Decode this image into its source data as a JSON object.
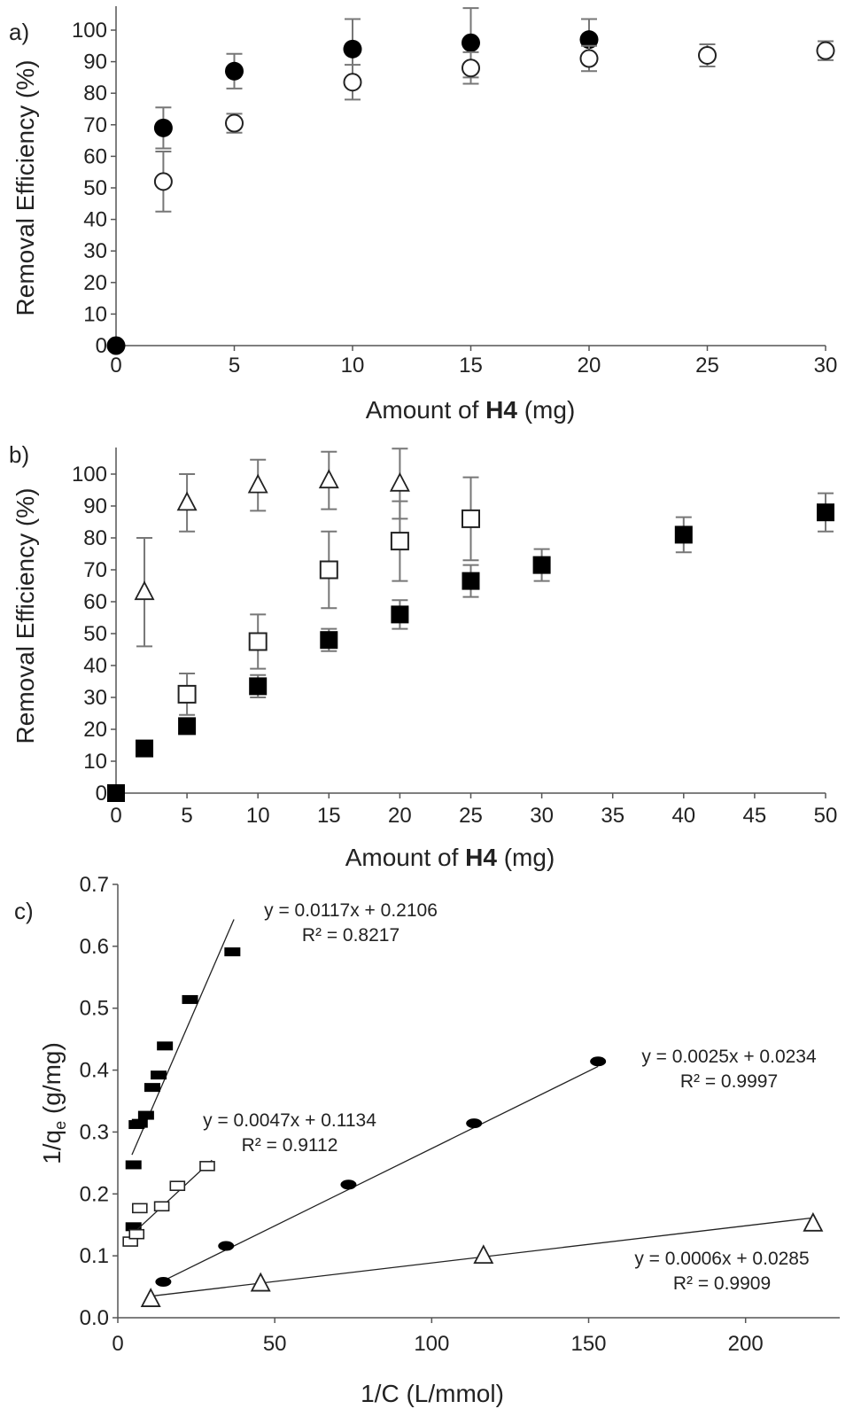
{
  "chart_data": [
    {
      "panel_label": "a)",
      "type": "scatter",
      "xlabel_prefix": "Amount of ",
      "xlabel_bold": "H4",
      "xlabel_suffix": " (mg)",
      "ylabel": "Removal Efficiency (%)",
      "xlim": [
        0,
        30
      ],
      "ylim": [
        0,
        100
      ],
      "xticks": [
        0,
        5,
        10,
        15,
        20,
        25,
        30
      ],
      "yticks": [
        0,
        10,
        20,
        30,
        40,
        50,
        60,
        70,
        80,
        90,
        100
      ],
      "grid": false,
      "series": [
        {
          "marker": "filled-circle",
          "x": [
            0,
            2,
            5,
            10,
            15,
            20
          ],
          "y": [
            0,
            69,
            87,
            94,
            96,
            97
          ],
          "err": [
            0,
            6.5,
            5.5,
            9.5,
            11,
            6.5
          ]
        },
        {
          "marker": "open-circle",
          "x": [
            2,
            5,
            10,
            15,
            20,
            25,
            30
          ],
          "y": [
            52,
            70.5,
            83.5,
            88,
            91,
            92,
            93.5
          ],
          "err": [
            9.5,
            3,
            5.5,
            5,
            4,
            3.5,
            3
          ]
        }
      ]
    },
    {
      "panel_label": "b)",
      "type": "scatter",
      "xlabel_prefix": "Amount of ",
      "xlabel_bold": "H4",
      "xlabel_suffix": " (mg)",
      "ylabel": "Removal Efficiency (%)",
      "xlim": [
        0,
        50
      ],
      "ylim": [
        0,
        100
      ],
      "xticks": [
        0,
        5,
        10,
        15,
        20,
        25,
        30,
        35,
        40,
        45,
        50
      ],
      "yticks": [
        0,
        10,
        20,
        30,
        40,
        50,
        60,
        70,
        80,
        90,
        100
      ],
      "grid": false,
      "series": [
        {
          "marker": "open-triangle",
          "x": [
            2,
            5,
            10,
            15,
            20
          ],
          "y": [
            63,
            91,
            96.5,
            98,
            97
          ],
          "err": [
            17,
            9,
            8,
            9,
            11
          ]
        },
        {
          "marker": "open-square",
          "x": [
            5,
            10,
            15,
            20,
            25
          ],
          "y": [
            31,
            47.5,
            70,
            79,
            86
          ],
          "err": [
            6.5,
            8.5,
            12,
            12.5,
            13
          ]
        },
        {
          "marker": "filled-square",
          "x": [
            0,
            2,
            5,
            10,
            15,
            20,
            25,
            30,
            40,
            50
          ],
          "y": [
            0,
            14,
            21,
            33.5,
            48,
            56,
            66.5,
            71.5,
            81,
            88
          ],
          "err": [
            0,
            2,
            1,
            3.5,
            3.5,
            4.5,
            5,
            5,
            5.5,
            6
          ]
        }
      ]
    },
    {
      "panel_label": "c)",
      "type": "scatter",
      "xlabel": "1/C (L/mmol)",
      "ylabel_main": "1/q",
      "ylabel_sub": "e",
      "ylabel_rest": " (g/mg)",
      "xlim": [
        0,
        230
      ],
      "ylim": [
        0,
        0.7
      ],
      "xticks": [
        0,
        50,
        100,
        150,
        200
      ],
      "yticks": [
        0,
        0.1,
        0.2,
        0.3,
        0.4,
        0.5,
        0.6,
        0.7
      ],
      "grid": false,
      "series": [
        {
          "marker": "filled-dash",
          "x": [
            5,
            5,
            6,
            7,
            9,
            11,
            13,
            15,
            23,
            36.5
          ],
          "y": [
            0.147,
            0.247,
            0.312,
            0.314,
            0.327,
            0.372,
            0.392,
            0.439,
            0.514,
            0.591
          ],
          "fit": {
            "slope": 0.0117,
            "intercept": 0.2106,
            "x_range": [
              4.5,
              37
            ],
            "equation": "y = 0.0117x + 0.2106",
            "r2": "R² = 0.8217"
          }
        },
        {
          "marker": "open-rect",
          "x": [
            4,
            6,
            7,
            14,
            19,
            28.5
          ],
          "y": [
            0.123,
            0.135,
            0.177,
            0.18,
            0.213,
            0.245
          ],
          "fit": {
            "slope": 0.0047,
            "intercept": 0.1134,
            "x_range": [
              3,
              30
            ],
            "equation": "y = 0.0047x + 0.1134",
            "r2": "R² = 0.9112"
          }
        },
        {
          "marker": "filled-ellipse",
          "x": [
            14.5,
            34.5,
            73.5,
            113.5,
            153
          ],
          "y": [
            0.058,
            0.116,
            0.215,
            0.314,
            0.414
          ],
          "fit": {
            "slope": 0.0025,
            "intercept": 0.0234,
            "x_range": [
              13.5,
              153
            ],
            "equation": "y = 0.0025x + 0.0234",
            "r2": "R² = 0.9997"
          }
        },
        {
          "marker": "open-triangle",
          "x": [
            10.5,
            45.5,
            116.5,
            221.5
          ],
          "y": [
            0.03,
            0.055,
            0.1,
            0.152
          ],
          "fit": {
            "slope": 0.0006,
            "intercept": 0.0285,
            "x_range": [
              10.5,
              221.5
            ],
            "equation": "y = 0.0006x + 0.0285",
            "r2": "R² = 0.9909"
          }
        }
      ]
    }
  ]
}
